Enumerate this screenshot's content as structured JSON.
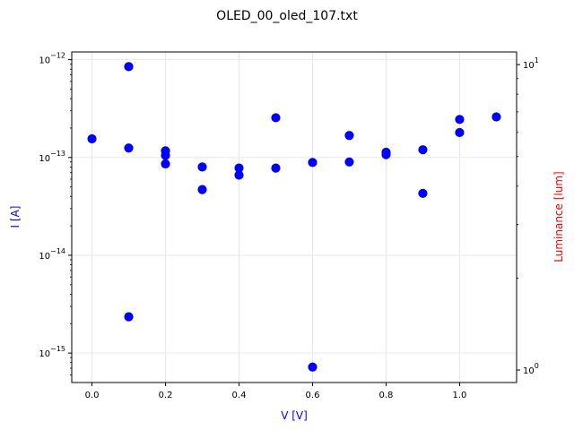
{
  "colors": {
    "current": "#0000ff",
    "luminance": "#ff0000",
    "grid": "#e6e6fa"
  },
  "chart_data": {
    "type": "scatter",
    "title": "OLED_00_oled_107.txt",
    "xlabel": "V [V]",
    "ylabel": "I [A]",
    "y2label": "Luminance [lum]",
    "xlim": [
      -0.055,
      1.155
    ],
    "ylim": [
      5e-16,
      1.2e-12
    ],
    "y2lim": [
      0.91,
      11.0
    ],
    "yscale": "log",
    "y2scale": "log",
    "grid": true,
    "x_ticks": [
      {
        "value": 0.0,
        "label": "0.0"
      },
      {
        "value": 0.2,
        "label": "0.2"
      },
      {
        "value": 0.4,
        "label": "0.4"
      },
      {
        "value": 0.6,
        "label": "0.6"
      },
      {
        "value": 0.8,
        "label": "0.8"
      },
      {
        "value": 1.0,
        "label": "1.0"
      }
    ],
    "y_ticks": [
      {
        "value": 1e-15,
        "base": "10",
        "exp": "−15"
      },
      {
        "value": 1e-14,
        "base": "10",
        "exp": "−14"
      },
      {
        "value": 1e-13,
        "base": "10",
        "exp": "−13"
      },
      {
        "value": 1e-12,
        "base": "10",
        "exp": "−12"
      }
    ],
    "y2_ticks": [
      {
        "value": 1,
        "base": "10",
        "exp": "0"
      },
      {
        "value": 10,
        "base": "10",
        "exp": "1"
      }
    ],
    "series": [
      {
        "axis": "left",
        "x": [
          0.0,
          0.1,
          0.1,
          0.1,
          0.2,
          0.2,
          0.2,
          0.3,
          0.3,
          0.4,
          0.4,
          0.5,
          0.5,
          0.6,
          0.6,
          0.7,
          0.7,
          0.8,
          0.8,
          0.9,
          0.9,
          1.0,
          1.0,
          1.1
        ],
        "y": [
          1.55e-13,
          8.5e-13,
          1.25e-13,
          2.35e-15,
          1.17e-13,
          1.05e-13,
          8.6e-14,
          8e-14,
          4.7e-14,
          7.8e-14,
          6.6e-14,
          2.55e-13,
          7.8e-14,
          8.9e-14,
          7.2e-16,
          1.68e-13,
          9e-14,
          1.13e-13,
          1.07e-13,
          1.2e-13,
          4.3e-14,
          2.45e-13,
          1.8e-13,
          2.6e-13
        ]
      }
    ]
  }
}
